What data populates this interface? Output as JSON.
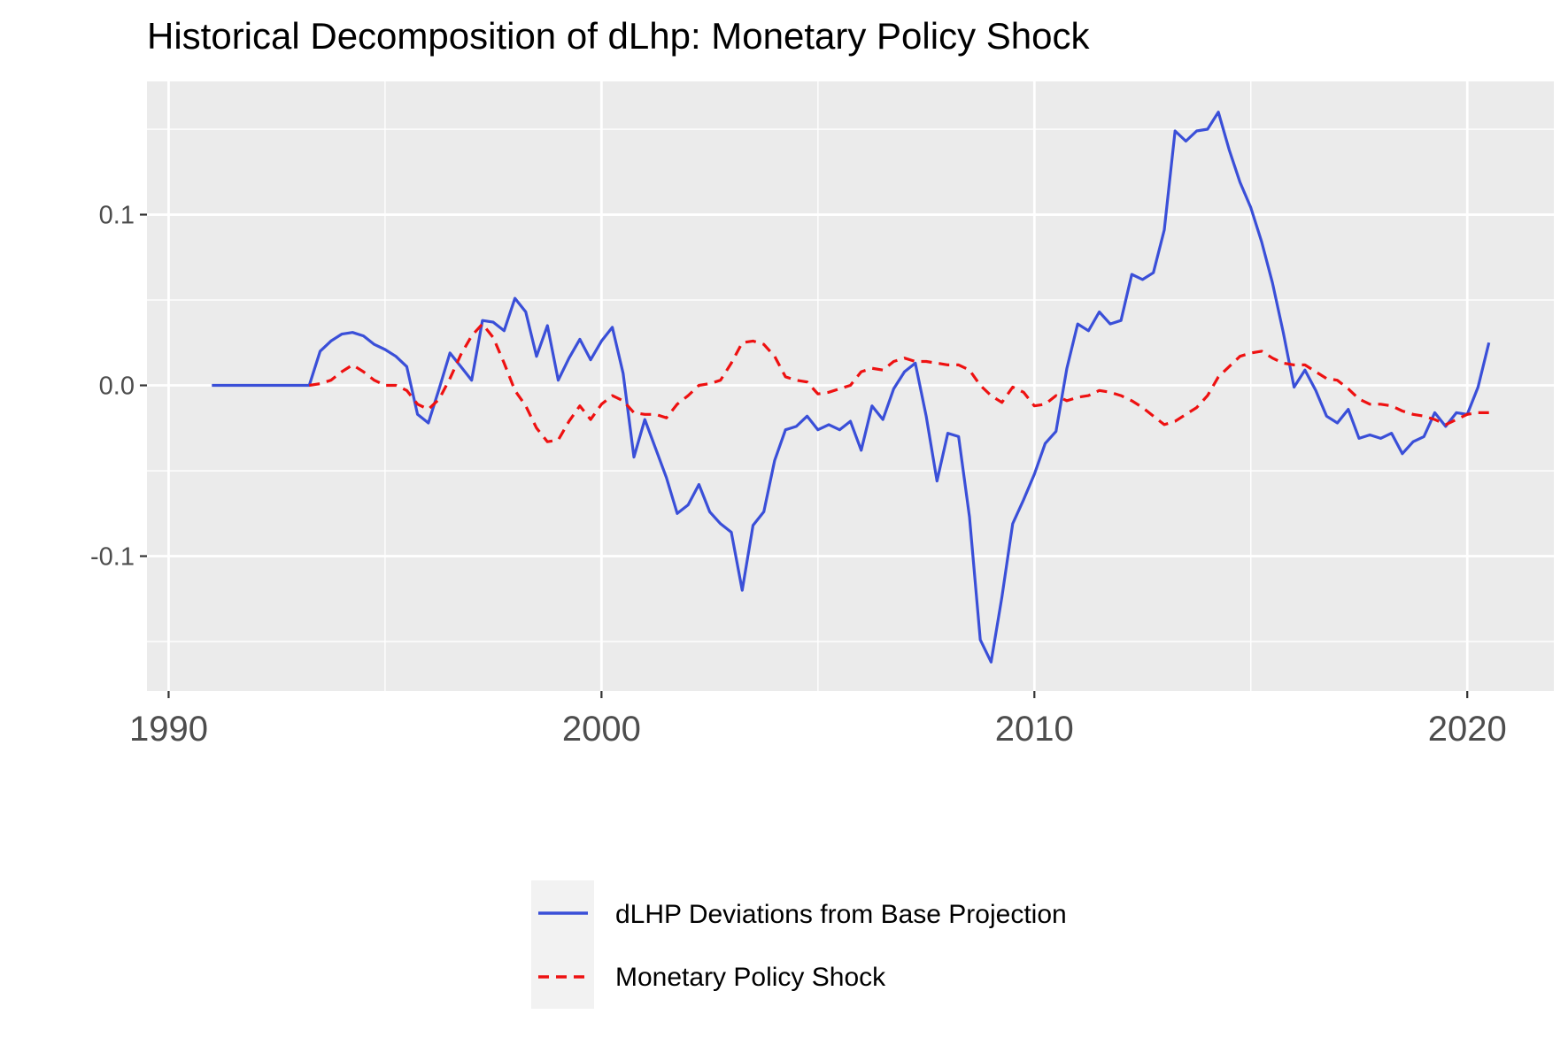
{
  "chart_data": {
    "type": "line",
    "title": "Historical Decomposition of dLhp: Monetary Policy Shock",
    "xlabel": "",
    "ylabel": "",
    "xlim": [
      1989.5,
      2022.0
    ],
    "ylim": [
      -0.179,
      0.178
    ],
    "x_ticks": [
      1990,
      2000,
      2010,
      2020
    ],
    "x_tick_labels": [
      "1990",
      "2000",
      "2010",
      "2020"
    ],
    "y_ticks": [
      -0.1,
      0.0,
      0.1
    ],
    "y_tick_labels": [
      "-0.1",
      "0.0",
      "0.1"
    ],
    "grid": true,
    "legend_position": "bottom",
    "series": [
      {
        "name": "dLHP Deviations from Base Projection",
        "color": "#3A4FD8",
        "line_style": "solid",
        "points": [
          [
            1991.0,
            0.0
          ],
          [
            1991.25,
            0.0
          ],
          [
            1991.5,
            0.0
          ],
          [
            1991.75,
            0.0
          ],
          [
            1992.0,
            0.0
          ],
          [
            1992.25,
            0.0
          ],
          [
            1992.5,
            0.0
          ],
          [
            1992.75,
            0.0
          ],
          [
            1993.0,
            0.0
          ],
          [
            1993.25,
            0.0
          ],
          [
            1993.5,
            0.02
          ],
          [
            1993.75,
            0.026
          ],
          [
            1994.0,
            0.03
          ],
          [
            1994.25,
            0.031
          ],
          [
            1994.5,
            0.029
          ],
          [
            1994.75,
            0.024
          ],
          [
            1995.0,
            0.021
          ],
          [
            1995.25,
            0.017
          ],
          [
            1995.5,
            0.011
          ],
          [
            1995.75,
            -0.017
          ],
          [
            1996.0,
            -0.022
          ],
          [
            1996.25,
            -0.002
          ],
          [
            1996.5,
            0.019
          ],
          [
            1996.75,
            0.011
          ],
          [
            1997.0,
            0.003
          ],
          [
            1997.25,
            0.038
          ],
          [
            1997.5,
            0.037
          ],
          [
            1997.75,
            0.032
          ],
          [
            1998.0,
            0.051
          ],
          [
            1998.25,
            0.043
          ],
          [
            1998.5,
            0.017
          ],
          [
            1998.75,
            0.035
          ],
          [
            1999.0,
            0.003
          ],
          [
            1999.25,
            0.016
          ],
          [
            1999.5,
            0.027
          ],
          [
            1999.75,
            0.015
          ],
          [
            2000.0,
            0.026
          ],
          [
            2000.25,
            0.034
          ],
          [
            2000.5,
            0.007
          ],
          [
            2000.75,
            -0.042
          ],
          [
            2001.0,
            -0.02
          ],
          [
            2001.25,
            -0.037
          ],
          [
            2001.5,
            -0.054
          ],
          [
            2001.75,
            -0.075
          ],
          [
            2002.0,
            -0.07
          ],
          [
            2002.25,
            -0.058
          ],
          [
            2002.5,
            -0.074
          ],
          [
            2002.75,
            -0.081
          ],
          [
            2003.0,
            -0.086
          ],
          [
            2003.25,
            -0.12
          ],
          [
            2003.5,
            -0.082
          ],
          [
            2003.75,
            -0.074
          ],
          [
            2004.0,
            -0.044
          ],
          [
            2004.25,
            -0.026
          ],
          [
            2004.5,
            -0.024
          ],
          [
            2004.75,
            -0.018
          ],
          [
            2005.0,
            -0.026
          ],
          [
            2005.25,
            -0.023
          ],
          [
            2005.5,
            -0.026
          ],
          [
            2005.75,
            -0.021
          ],
          [
            2006.0,
            -0.038
          ],
          [
            2006.25,
            -0.012
          ],
          [
            2006.5,
            -0.02
          ],
          [
            2006.75,
            -0.002
          ],
          [
            2007.0,
            0.008
          ],
          [
            2007.25,
            0.013
          ],
          [
            2007.5,
            -0.018
          ],
          [
            2007.75,
            -0.056
          ],
          [
            2008.0,
            -0.028
          ],
          [
            2008.25,
            -0.03
          ],
          [
            2008.5,
            -0.077
          ],
          [
            2008.75,
            -0.149
          ],
          [
            2009.0,
            -0.162
          ],
          [
            2009.25,
            -0.124
          ],
          [
            2009.5,
            -0.081
          ],
          [
            2009.75,
            -0.067
          ],
          [
            2010.0,
            -0.052
          ],
          [
            2010.25,
            -0.034
          ],
          [
            2010.5,
            -0.027
          ],
          [
            2010.75,
            0.01
          ],
          [
            2011.0,
            0.036
          ],
          [
            2011.25,
            0.032
          ],
          [
            2011.5,
            0.043
          ],
          [
            2011.75,
            0.036
          ],
          [
            2012.0,
            0.038
          ],
          [
            2012.25,
            0.065
          ],
          [
            2012.5,
            0.062
          ],
          [
            2012.75,
            0.066
          ],
          [
            2013.0,
            0.091
          ],
          [
            2013.25,
            0.149
          ],
          [
            2013.5,
            0.143
          ],
          [
            2013.75,
            0.149
          ],
          [
            2014.0,
            0.15
          ],
          [
            2014.25,
            0.16
          ],
          [
            2014.5,
            0.138
          ],
          [
            2014.75,
            0.119
          ],
          [
            2015.0,
            0.104
          ],
          [
            2015.25,
            0.084
          ],
          [
            2015.5,
            0.06
          ],
          [
            2015.75,
            0.031
          ],
          [
            2016.0,
            -0.001
          ],
          [
            2016.25,
            0.009
          ],
          [
            2016.5,
            -0.003
          ],
          [
            2016.75,
            -0.018
          ],
          [
            2017.0,
            -0.022
          ],
          [
            2017.25,
            -0.014
          ],
          [
            2017.5,
            -0.031
          ],
          [
            2017.75,
            -0.029
          ],
          [
            2018.0,
            -0.031
          ],
          [
            2018.25,
            -0.028
          ],
          [
            2018.5,
            -0.04
          ],
          [
            2018.75,
            -0.033
          ],
          [
            2019.0,
            -0.03
          ],
          [
            2019.25,
            -0.016
          ],
          [
            2019.5,
            -0.024
          ],
          [
            2019.75,
            -0.016
          ],
          [
            2020.0,
            -0.017
          ],
          [
            2020.25,
            -0.001
          ],
          [
            2020.5,
            0.025
          ]
        ]
      },
      {
        "name": "Monetary Policy Shock",
        "color": "#EE1111",
        "line_style": "dashed",
        "points": [
          [
            1993.25,
            0.0
          ],
          [
            1993.5,
            0.001
          ],
          [
            1993.75,
            0.003
          ],
          [
            1994.0,
            0.008
          ],
          [
            1994.25,
            0.012
          ],
          [
            1994.5,
            0.008
          ],
          [
            1994.75,
            0.003
          ],
          [
            1995.0,
            0.0
          ],
          [
            1995.25,
            0.0
          ],
          [
            1995.5,
            -0.003
          ],
          [
            1995.75,
            -0.011
          ],
          [
            1996.0,
            -0.014
          ],
          [
            1996.25,
            -0.008
          ],
          [
            1996.5,
            0.004
          ],
          [
            1996.75,
            0.018
          ],
          [
            1997.0,
            0.029
          ],
          [
            1997.25,
            0.036
          ],
          [
            1997.5,
            0.028
          ],
          [
            1997.75,
            0.013
          ],
          [
            1998.0,
            -0.003
          ],
          [
            1998.25,
            -0.012
          ],
          [
            1998.5,
            -0.025
          ],
          [
            1998.75,
            -0.033
          ],
          [
            1999.0,
            -0.032
          ],
          [
            1999.25,
            -0.021
          ],
          [
            1999.5,
            -0.012
          ],
          [
            1999.75,
            -0.02
          ],
          [
            2000.0,
            -0.011
          ],
          [
            2000.25,
            -0.006
          ],
          [
            2000.5,
            -0.009
          ],
          [
            2000.75,
            -0.016
          ],
          [
            2001.0,
            -0.017
          ],
          [
            2001.25,
            -0.017
          ],
          [
            2001.5,
            -0.019
          ],
          [
            2001.75,
            -0.011
          ],
          [
            2002.0,
            -0.006
          ],
          [
            2002.25,
            0.0
          ],
          [
            2002.5,
            0.001
          ],
          [
            2002.75,
            0.003
          ],
          [
            2003.0,
            0.013
          ],
          [
            2003.25,
            0.025
          ],
          [
            2003.5,
            0.026
          ],
          [
            2003.75,
            0.024
          ],
          [
            2004.0,
            0.017
          ],
          [
            2004.25,
            0.005
          ],
          [
            2004.5,
            0.003
          ],
          [
            2004.75,
            0.002
          ],
          [
            2005.0,
            -0.005
          ],
          [
            2005.25,
            -0.004
          ],
          [
            2005.5,
            -0.002
          ],
          [
            2005.75,
            0.0
          ],
          [
            2006.0,
            0.008
          ],
          [
            2006.25,
            0.01
          ],
          [
            2006.5,
            0.009
          ],
          [
            2006.75,
            0.014
          ],
          [
            2007.0,
            0.016
          ],
          [
            2007.25,
            0.014
          ],
          [
            2007.5,
            0.014
          ],
          [
            2007.75,
            0.013
          ],
          [
            2008.0,
            0.012
          ],
          [
            2008.25,
            0.012
          ],
          [
            2008.5,
            0.009
          ],
          [
            2008.75,
            0.0
          ],
          [
            2009.0,
            -0.006
          ],
          [
            2009.25,
            -0.01
          ],
          [
            2009.5,
            -0.001
          ],
          [
            2009.75,
            -0.004
          ],
          [
            2010.0,
            -0.012
          ],
          [
            2010.25,
            -0.011
          ],
          [
            2010.5,
            -0.006
          ],
          [
            2010.75,
            -0.009
          ],
          [
            2011.0,
            -0.007
          ],
          [
            2011.25,
            -0.006
          ],
          [
            2011.5,
            -0.003
          ],
          [
            2011.75,
            -0.004
          ],
          [
            2012.0,
            -0.006
          ],
          [
            2012.25,
            -0.009
          ],
          [
            2012.5,
            -0.013
          ],
          [
            2012.75,
            -0.018
          ],
          [
            2013.0,
            -0.023
          ],
          [
            2013.25,
            -0.021
          ],
          [
            2013.5,
            -0.017
          ],
          [
            2013.75,
            -0.013
          ],
          [
            2014.0,
            -0.006
          ],
          [
            2014.25,
            0.005
          ],
          [
            2014.5,
            0.011
          ],
          [
            2014.75,
            0.017
          ],
          [
            2015.0,
            0.019
          ],
          [
            2015.25,
            0.02
          ],
          [
            2015.5,
            0.016
          ],
          [
            2015.75,
            0.013
          ],
          [
            2016.0,
            0.012
          ],
          [
            2016.25,
            0.012
          ],
          [
            2016.5,
            0.008
          ],
          [
            2016.75,
            0.004
          ],
          [
            2017.0,
            0.003
          ],
          [
            2017.25,
            -0.002
          ],
          [
            2017.5,
            -0.008
          ],
          [
            2017.75,
            -0.011
          ],
          [
            2018.0,
            -0.011
          ],
          [
            2018.25,
            -0.012
          ],
          [
            2018.5,
            -0.015
          ],
          [
            2018.75,
            -0.017
          ],
          [
            2019.0,
            -0.018
          ],
          [
            2019.25,
            -0.02
          ],
          [
            2019.5,
            -0.023
          ],
          [
            2019.75,
            -0.02
          ],
          [
            2020.0,
            -0.017
          ],
          [
            2020.25,
            -0.016
          ],
          [
            2020.5,
            -0.016
          ]
        ]
      }
    ]
  }
}
